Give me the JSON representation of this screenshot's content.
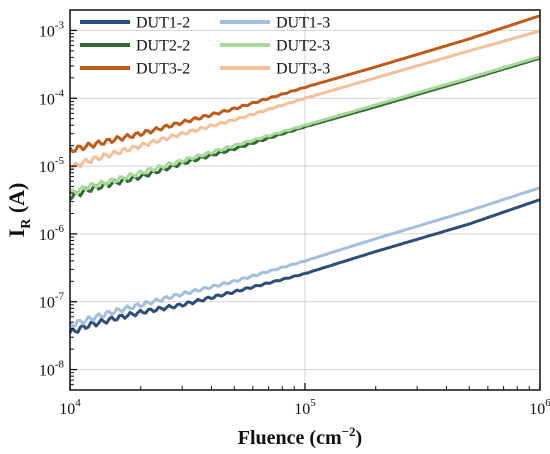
{
  "chart_data": {
    "type": "line",
    "xlabel": {
      "base": "Fluence (cm",
      "sup": "−2",
      "close": ")"
    },
    "ylabel": {
      "base": "I",
      "sub": "R",
      "rest": " (A)"
    },
    "xscale": "log",
    "yscale": "log",
    "xlim": [
      10000,
      1000000
    ],
    "ylim": [
      5e-09,
      0.002
    ],
    "grid": true,
    "legend_position": "top-left",
    "x_ticks": [
      {
        "value": 10000,
        "base": "10",
        "exp": "4"
      },
      {
        "value": 100000,
        "base": "10",
        "exp": "5"
      },
      {
        "value": 1000000,
        "base": "10",
        "exp": "6"
      }
    ],
    "y_ticks": [
      {
        "value": 1e-08,
        "base": "10",
        "exp": "-8"
      },
      {
        "value": 1e-07,
        "base": "10",
        "exp": "-7"
      },
      {
        "value": 1e-06,
        "base": "10",
        "exp": "-6"
      },
      {
        "value": 1e-05,
        "base": "10",
        "exp": "-5"
      },
      {
        "value": 0.0001,
        "base": "10",
        "exp": "-4"
      },
      {
        "value": 0.001,
        "base": "10",
        "exp": "-3"
      }
    ],
    "series": [
      {
        "name": "DUT1-2",
        "color": "#2e4e7a",
        "x": [
          10000,
          12000,
          15000,
          20000,
          30000,
          50000,
          100000,
          200000,
          500000,
          1000000
        ],
        "y": [
          3.5e-08,
          4.5e-08,
          5.5e-08,
          7e-08,
          9e-08,
          1.4e-07,
          2.6e-07,
          5.5e-07,
          1.4e-06,
          3.2e-06
        ]
      },
      {
        "name": "DUT1-3",
        "color": "#a3bfdd",
        "x": [
          10000,
          12000,
          15000,
          20000,
          30000,
          50000,
          100000,
          200000,
          500000,
          1000000
        ],
        "y": [
          4.5e-08,
          5.5e-08,
          7e-08,
          9e-08,
          1.3e-07,
          2e-07,
          4e-07,
          8.5e-07,
          2.2e-06,
          4.8e-06
        ]
      },
      {
        "name": "DUT2-2",
        "color": "#2f6b2f",
        "x": [
          10000,
          12000,
          15000,
          20000,
          30000,
          50000,
          100000,
          200000,
          500000,
          1000000
        ],
        "y": [
          3.5e-06,
          4.5e-06,
          5.5e-06,
          7e-06,
          1.1e-05,
          1.8e-05,
          3.8e-05,
          7.5e-05,
          0.00019,
          0.00039
        ]
      },
      {
        "name": "DUT2-3",
        "color": "#a8d89a",
        "x": [
          10000,
          12000,
          15000,
          20000,
          30000,
          50000,
          100000,
          200000,
          500000,
          1000000
        ],
        "y": [
          3.9e-06,
          5e-06,
          6e-06,
          8e-06,
          1.2e-05,
          2e-05,
          4e-05,
          8e-05,
          0.0002,
          0.00041
        ]
      },
      {
        "name": "DUT3-2",
        "color": "#bf5b17",
        "x": [
          10000,
          12000,
          15000,
          20000,
          30000,
          50000,
          100000,
          200000,
          500000,
          1000000
        ],
        "y": [
          1.7e-05,
          2e-05,
          2.4e-05,
          3e-05,
          4.4e-05,
          7e-05,
          0.000145,
          0.00029,
          0.00075,
          0.00165
        ]
      },
      {
        "name": "DUT3-3",
        "color": "#f5bf98",
        "x": [
          10000,
          12000,
          15000,
          20000,
          30000,
          50000,
          100000,
          200000,
          500000,
          1000000
        ],
        "y": [
          9.5e-06,
          1.2e-05,
          1.5e-05,
          2e-05,
          3e-05,
          4.8e-05,
          0.0001,
          0.0002,
          0.0005,
          0.00098
        ]
      }
    ]
  }
}
